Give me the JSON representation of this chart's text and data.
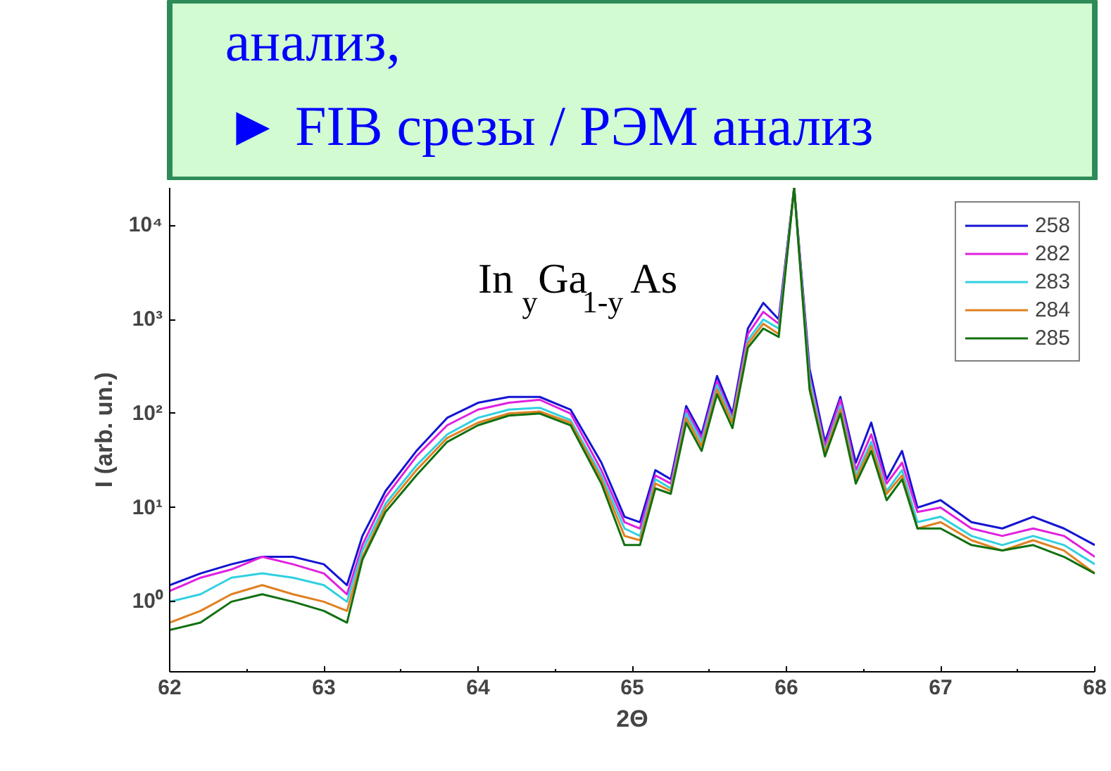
{
  "chart_data": {
    "type": "line",
    "xlabel": "2Θ",
    "ylabel": "I (arb. un.)",
    "annotations": [
      "анализ,",
      "► FIB срезы / РЭМ анализ",
      "In$_{y}$Ga$_{1-y}$As"
    ],
    "x": [
      62.0,
      62.2,
      62.4,
      62.6,
      62.8,
      63.0,
      63.15,
      63.25,
      63.4,
      63.6,
      63.8,
      64.0,
      64.2,
      64.4,
      64.6,
      64.8,
      64.95,
      65.05,
      65.15,
      65.25,
      65.35,
      65.45,
      65.55,
      65.65,
      65.75,
      65.85,
      65.95,
      66.05,
      66.15,
      66.25,
      66.35,
      66.45,
      66.55,
      66.65,
      66.75,
      66.85,
      67.0,
      67.2,
      67.4,
      67.6,
      67.8,
      68.0
    ],
    "series": [
      {
        "name": "258",
        "color": "#1414d2",
        "values": [
          1.5,
          2,
          2.5,
          3,
          3,
          2.5,
          1.5,
          5,
          15,
          40,
          90,
          130,
          150,
          150,
          110,
          30,
          8,
          7,
          25,
          20,
          120,
          60,
          250,
          100,
          800,
          1500,
          1000,
          25000,
          300,
          50,
          150,
          30,
          80,
          20,
          40,
          10,
          12,
          7,
          6,
          8,
          6,
          4
        ]
      },
      {
        "name": "282",
        "color": "#e020e0",
        "values": [
          1.3,
          1.8,
          2.2,
          3,
          2.5,
          2,
          1.2,
          4,
          13,
          35,
          75,
          110,
          130,
          140,
          100,
          25,
          7,
          6,
          22,
          18,
          110,
          55,
          220,
          90,
          700,
          1200,
          900,
          25000,
          250,
          45,
          140,
          25,
          60,
          18,
          30,
          9,
          10,
          6,
          5,
          6,
          5,
          3
        ]
      },
      {
        "name": "283",
        "color": "#30d0e0",
        "values": [
          1,
          1.2,
          1.8,
          2,
          1.8,
          1.5,
          1,
          3.5,
          11,
          28,
          60,
          90,
          110,
          115,
          85,
          22,
          6,
          5,
          20,
          16,
          100,
          50,
          200,
          85,
          600,
          1000,
          800,
          25000,
          230,
          40,
          120,
          22,
          50,
          15,
          25,
          7,
          8,
          5,
          4,
          5,
          4,
          2.5
        ]
      },
      {
        "name": "284",
        "color": "#e08020",
        "values": [
          0.6,
          0.8,
          1.2,
          1.5,
          1.2,
          1,
          0.8,
          3,
          10,
          25,
          55,
          80,
          100,
          105,
          80,
          20,
          5,
          4.5,
          18,
          15,
          90,
          45,
          180,
          80,
          550,
          900,
          700,
          25000,
          200,
          38,
          110,
          20,
          45,
          14,
          22,
          6,
          7,
          4.5,
          3.5,
          4.5,
          3.5,
          2
        ]
      },
      {
        "name": "285",
        "color": "#107010",
        "values": [
          0.5,
          0.6,
          1,
          1.2,
          1,
          0.8,
          0.6,
          2.8,
          9,
          22,
          50,
          75,
          95,
          100,
          75,
          18,
          4,
          4,
          16,
          14,
          80,
          40,
          160,
          70,
          500,
          800,
          650,
          25000,
          180,
          35,
          100,
          18,
          40,
          12,
          20,
          6,
          6,
          4,
          3.5,
          4,
          3,
          2
        ]
      }
    ],
    "xlim": [
      62,
      68
    ],
    "xticks": [
      62,
      63,
      64,
      65,
      66,
      67,
      68
    ],
    "ylim": [
      0.18,
      25000
    ],
    "yticks": [
      {
        "value": 1,
        "label": "10⁰"
      },
      {
        "value": 10,
        "label": "10¹"
      },
      {
        "value": 100,
        "label": "10²"
      },
      {
        "value": 1000,
        "label": "10³"
      },
      {
        "value": 10000,
        "label": "10⁴"
      }
    ],
    "log": "y",
    "grid": false,
    "legend": "top right",
    "line_style": "solid"
  }
}
